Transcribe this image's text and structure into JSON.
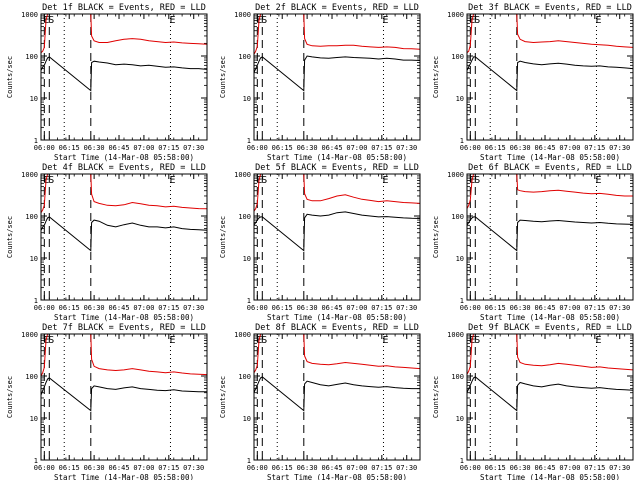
{
  "chart_data": {
    "type": "line",
    "axes": {
      "xlabel": "Start Time (14-Mar-08 05:58:00)",
      "ylabel": "Counts/sec",
      "x_range_minutes": [
        0,
        100
      ],
      "x_ticks": [
        {
          "value": 2,
          "label": "06:00"
        },
        {
          "value": 17,
          "label": "06:15"
        },
        {
          "value": 32,
          "label": "06:30"
        },
        {
          "value": 47,
          "label": "06:45"
        },
        {
          "value": 62,
          "label": "07:00"
        },
        {
          "value": 77,
          "label": "07:15"
        },
        {
          "value": 92,
          "label": "07:30"
        }
      ],
      "y_scale": "log",
      "ylim": [
        1,
        1000
      ],
      "y_ticks": [
        {
          "value": 1,
          "label": "1"
        },
        {
          "value": 10,
          "label": "10"
        },
        {
          "value": 100,
          "label": "100"
        },
        {
          "value": 1000,
          "label": "1000"
        }
      ],
      "markers": [
        {
          "x": 2,
          "label": "E",
          "style": "dashed"
        },
        {
          "x": 5,
          "label": "S",
          "style": "dashed"
        },
        {
          "x": 14,
          "label": "",
          "style": "dotted"
        },
        {
          "x": 30,
          "label": "",
          "style": "dashed"
        },
        {
          "x": 78,
          "label": "E",
          "style": "dotted"
        }
      ]
    },
    "series_colors": {
      "lld": "#e00000",
      "events": "#000000"
    },
    "panels": [
      {
        "title": "Det 1f BLACK = Events, RED = LLD",
        "x": [
          0,
          1,
          2,
          3,
          4,
          5,
          30,
          30.5,
          32,
          35,
          40,
          45,
          50,
          55,
          60,
          65,
          70,
          75,
          80,
          85,
          90,
          95,
          100
        ],
        "lld": [
          120,
          130,
          160,
          700,
          1100,
          1100,
          1100,
          300,
          230,
          210,
          210,
          230,
          250,
          260,
          250,
          230,
          220,
          210,
          215,
          205,
          200,
          195,
          190
        ],
        "events": [
          45,
          55,
          60,
          75,
          90,
          95,
          15,
          70,
          75,
          72,
          68,
          62,
          64,
          62,
          58,
          60,
          57,
          54,
          55,
          52,
          50,
          50,
          48
        ]
      },
      {
        "title": "Det 2f BLACK = Events, RED = LLD",
        "x": [
          0,
          1,
          2,
          3,
          4,
          5,
          30,
          30.5,
          32,
          35,
          40,
          45,
          50,
          55,
          60,
          65,
          70,
          75,
          80,
          85,
          90,
          95,
          100
        ],
        "lld": [
          110,
          130,
          170,
          700,
          1100,
          1100,
          1100,
          260,
          190,
          175,
          170,
          175,
          175,
          180,
          180,
          170,
          165,
          160,
          165,
          160,
          150,
          148,
          145
        ],
        "events": [
          40,
          50,
          60,
          75,
          90,
          95,
          15,
          80,
          100,
          95,
          90,
          88,
          92,
          95,
          92,
          90,
          88,
          85,
          88,
          85,
          80,
          80,
          78
        ]
      },
      {
        "title": "Det 3f BLACK = Events, RED = LLD",
        "x": [
          0,
          1,
          2,
          3,
          4,
          5,
          30,
          30.5,
          32,
          35,
          40,
          45,
          50,
          55,
          60,
          65,
          70,
          75,
          80,
          85,
          90,
          95,
          100
        ],
        "lld": [
          120,
          130,
          180,
          700,
          1100,
          1100,
          1100,
          330,
          250,
          220,
          210,
          215,
          220,
          230,
          220,
          210,
          200,
          190,
          185,
          180,
          170,
          165,
          160
        ],
        "events": [
          45,
          55,
          65,
          80,
          95,
          95,
          15,
          70,
          75,
          70,
          65,
          62,
          65,
          67,
          64,
          60,
          58,
          57,
          58,
          55,
          54,
          52,
          50
        ]
      },
      {
        "title": "Det 4f BLACK = Events, RED = LLD",
        "x": [
          0,
          1,
          2,
          3,
          4,
          5,
          30,
          30.5,
          32,
          35,
          40,
          45,
          50,
          55,
          60,
          65,
          70,
          75,
          80,
          85,
          90,
          95,
          100
        ],
        "lld": [
          120,
          140,
          180,
          700,
          1100,
          1100,
          1100,
          330,
          220,
          200,
          180,
          175,
          185,
          210,
          195,
          180,
          175,
          165,
          170,
          160,
          155,
          150,
          148
        ],
        "events": [
          45,
          55,
          60,
          75,
          90,
          95,
          15,
          70,
          80,
          75,
          60,
          55,
          62,
          68,
          60,
          55,
          55,
          52,
          55,
          50,
          48,
          47,
          46
        ]
      },
      {
        "title": "Det 5f BLACK = Events, RED = LLD",
        "x": [
          0,
          1,
          2,
          3,
          4,
          5,
          30,
          30.5,
          32,
          35,
          40,
          45,
          50,
          55,
          60,
          65,
          70,
          75,
          80,
          85,
          90,
          95,
          100
        ],
        "lld": [
          130,
          150,
          200,
          700,
          1100,
          1100,
          1100,
          340,
          250,
          230,
          230,
          260,
          300,
          320,
          280,
          250,
          235,
          220,
          230,
          220,
          210,
          205,
          200
        ],
        "events": [
          60,
          70,
          80,
          90,
          95,
          95,
          15,
          90,
          110,
          105,
          100,
          105,
          120,
          125,
          115,
          105,
          100,
          95,
          97,
          93,
          90,
          88,
          87
        ]
      },
      {
        "title": "Det 6f BLACK = Events, RED = LLD",
        "x": [
          0,
          1,
          2,
          3,
          4,
          5,
          30,
          30.5,
          32,
          35,
          40,
          45,
          50,
          55,
          60,
          65,
          70,
          75,
          80,
          85,
          90,
          95,
          100
        ],
        "lld": [
          150,
          180,
          240,
          700,
          1100,
          1100,
          1100,
          420,
          400,
          380,
          370,
          380,
          400,
          410,
          390,
          370,
          350,
          340,
          345,
          330,
          310,
          300,
          300
        ],
        "events": [
          60,
          70,
          80,
          90,
          95,
          95,
          15,
          70,
          80,
          78,
          75,
          73,
          76,
          78,
          75,
          72,
          70,
          68,
          70,
          67,
          65,
          64,
          63
        ]
      },
      {
        "title": "Det 7f BLACK = Events, RED = LLD",
        "x": [
          0,
          1,
          2,
          3,
          4,
          5,
          30,
          30.5,
          32,
          35,
          40,
          45,
          50,
          55,
          60,
          65,
          70,
          75,
          80,
          85,
          90,
          95,
          100
        ],
        "lld": [
          100,
          120,
          160,
          700,
          1100,
          1100,
          1100,
          250,
          170,
          150,
          140,
          135,
          140,
          150,
          140,
          130,
          125,
          120,
          125,
          118,
          112,
          110,
          108
        ],
        "events": [
          35,
          45,
          55,
          70,
          85,
          90,
          15,
          50,
          58,
          55,
          50,
          48,
          52,
          55,
          50,
          48,
          46,
          45,
          47,
          44,
          43,
          42,
          42
        ]
      },
      {
        "title": "Det 8f BLACK = Events, RED = LLD",
        "x": [
          0,
          1,
          2,
          3,
          4,
          5,
          30,
          30.5,
          32,
          35,
          40,
          45,
          50,
          55,
          60,
          65,
          70,
          75,
          80,
          85,
          90,
          95,
          100
        ],
        "lld": [
          120,
          140,
          180,
          700,
          1100,
          1100,
          1100,
          300,
          220,
          200,
          190,
          185,
          195,
          210,
          200,
          190,
          180,
          170,
          175,
          165,
          160,
          155,
          150
        ],
        "events": [
          40,
          50,
          60,
          75,
          90,
          95,
          15,
          65,
          75,
          70,
          62,
          58,
          63,
          68,
          62,
          58,
          56,
          54,
          56,
          53,
          51,
          50,
          50
        ]
      },
      {
        "title": "Det 9f BLACK = Events, RED = LLD",
        "x": [
          0,
          1,
          2,
          3,
          4,
          5,
          30,
          30.5,
          32,
          35,
          40,
          45,
          50,
          55,
          60,
          65,
          70,
          75,
          80,
          85,
          90,
          95,
          100
        ],
        "lld": [
          110,
          130,
          170,
          700,
          1100,
          1100,
          1100,
          280,
          210,
          190,
          180,
          175,
          185,
          200,
          190,
          180,
          170,
          160,
          165,
          155,
          150,
          145,
          140
        ],
        "events": [
          40,
          50,
          60,
          75,
          90,
          95,
          15,
          60,
          70,
          65,
          58,
          55,
          60,
          64,
          58,
          55,
          53,
          51,
          53,
          50,
          48,
          47,
          46
        ]
      }
    ]
  }
}
